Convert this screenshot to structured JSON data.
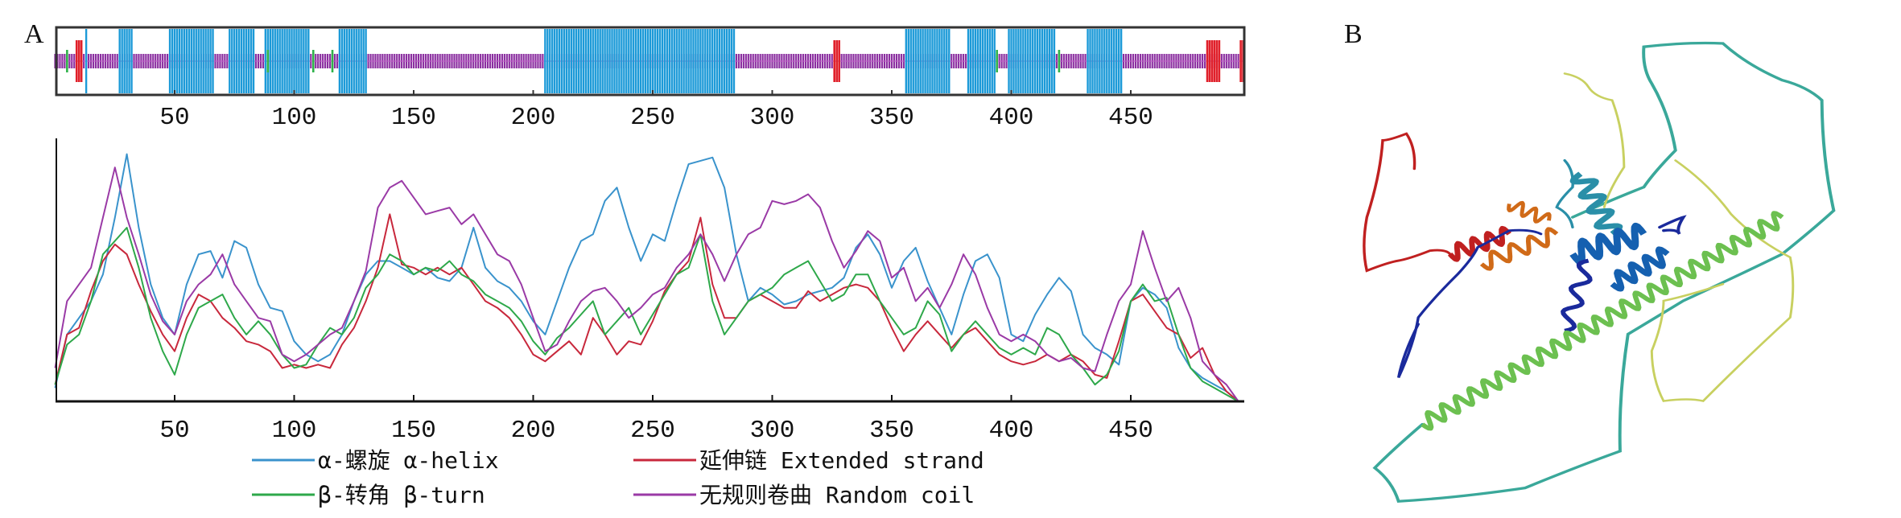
{
  "panel_a": {
    "label": "A",
    "track": {
      "length": 497,
      "helix_segments": [
        [
          13,
          13
        ],
        [
          27,
          32
        ],
        [
          48,
          66
        ],
        [
          73,
          83
        ],
        [
          88,
          106
        ],
        [
          119,
          130
        ],
        [
          205,
          284
        ],
        [
          356,
          374
        ],
        [
          382,
          393
        ],
        [
          399,
          418
        ],
        [
          432,
          446
        ]
      ],
      "extended_segments": [
        [
          9,
          11
        ],
        [
          326,
          328
        ],
        [
          482,
          487
        ],
        [
          496,
          497
        ]
      ],
      "turn_positions": [
        5,
        89,
        108,
        116,
        394,
        420
      ]
    },
    "colors": {
      "helix": "#1c9ad8",
      "extended": "#e0202a",
      "turn": "#2fb24a",
      "coil": "#8b2fa0",
      "frame": "#333333"
    }
  },
  "chart_data": {
    "type": "line",
    "title": "",
    "xlabel": "",
    "ylabel": "",
    "xlim": [
      0,
      497
    ],
    "ylim": [
      0,
      78
    ],
    "x_start": 0,
    "x_step": 5,
    "xticks": [
      "50",
      "100",
      "150",
      "200",
      "250",
      "300",
      "350",
      "400",
      "450"
    ],
    "xtick_values": [
      50,
      100,
      150,
      200,
      250,
      300,
      350,
      400,
      450
    ],
    "grid": false,
    "legend_position": "bottom",
    "series": [
      {
        "name": "α-螺旋 α-helix",
        "color": "#3a93cc",
        "values": [
          4,
          20,
          25,
          30,
          38,
          55,
          74,
          52,
          35,
          25,
          20,
          35,
          44,
          45,
          37,
          48,
          46,
          35,
          28,
          27,
          18,
          14,
          12,
          14,
          20,
          30,
          38,
          42,
          42,
          40,
          38,
          40,
          37,
          36,
          40,
          52,
          40,
          36,
          34,
          30,
          24,
          20,
          30,
          40,
          48,
          50,
          60,
          64,
          52,
          42,
          50,
          48,
          60,
          71,
          72,
          73,
          64,
          44,
          30,
          34,
          32,
          29,
          30,
          32,
          33,
          34,
          37,
          46,
          50,
          44,
          34,
          42,
          46,
          36,
          28,
          20,
          32,
          42,
          44,
          37,
          20,
          18,
          26,
          32,
          37,
          33,
          20,
          16,
          14,
          11,
          30,
          34,
          32,
          28,
          16,
          10,
          7,
          5,
          3,
          0
        ]
      },
      {
        "name": "延伸链 Extended strand",
        "color": "#c8283c",
        "values": [
          5,
          20,
          22,
          33,
          42,
          47,
          44,
          35,
          27,
          20,
          15,
          25,
          32,
          30,
          25,
          22,
          18,
          17,
          15,
          10,
          11,
          10,
          11,
          10,
          17,
          22,
          30,
          40,
          56,
          41,
          40,
          38,
          40,
          38,
          40,
          35,
          30,
          28,
          25,
          20,
          14,
          12,
          15,
          18,
          14,
          25,
          20,
          14,
          18,
          17,
          24,
          33,
          38,
          42,
          55,
          35,
          25,
          25,
          30,
          32,
          30,
          28,
          28,
          33,
          30,
          32,
          34,
          35,
          34,
          30,
          22,
          15,
          20,
          24,
          20,
          16,
          20,
          22,
          18,
          14,
          12,
          11,
          12,
          14,
          12,
          14,
          12,
          8,
          7,
          18,
          30,
          32,
          27,
          22,
          20,
          13,
          16,
          8,
          3,
          0
        ]
      },
      {
        "name": "β-转角 β-turn",
        "color": "#2ea84a",
        "values": [
          5,
          17,
          20,
          30,
          44,
          48,
          52,
          40,
          25,
          15,
          8,
          20,
          28,
          30,
          32,
          25,
          20,
          24,
          20,
          14,
          10,
          11,
          17,
          22,
          20,
          25,
          34,
          38,
          44,
          42,
          38,
          40,
          39,
          42,
          38,
          36,
          32,
          30,
          28,
          24,
          18,
          14,
          19,
          22,
          26,
          30,
          20,
          24,
          28,
          20,
          26,
          32,
          38,
          40,
          50,
          30,
          20,
          25,
          30,
          32,
          34,
          38,
          40,
          42,
          36,
          30,
          32,
          38,
          38,
          30,
          25,
          20,
          22,
          30,
          26,
          15,
          20,
          24,
          20,
          16,
          14,
          16,
          14,
          22,
          20,
          14,
          10,
          5,
          8,
          15,
          30,
          35,
          30,
          31,
          20,
          10,
          6,
          4,
          2,
          0
        ]
      },
      {
        "name": "无规则卷曲 Random coil",
        "color": "#9a3aa6",
        "values": [
          10,
          30,
          35,
          40,
          55,
          70,
          55,
          44,
          32,
          24,
          20,
          30,
          35,
          38,
          44,
          35,
          30,
          25,
          24,
          14,
          12,
          14,
          17,
          20,
          22,
          30,
          39,
          58,
          64,
          66,
          61,
          56,
          57,
          58,
          53,
          56,
          50,
          44,
          42,
          35,
          25,
          15,
          17,
          24,
          30,
          33,
          34,
          30,
          25,
          28,
          32,
          34,
          40,
          44,
          50,
          44,
          36,
          44,
          50,
          52,
          60,
          59,
          60,
          62,
          58,
          48,
          40,
          45,
          51,
          48,
          37,
          40,
          30,
          34,
          28,
          35,
          44,
          38,
          28,
          20,
          18,
          20,
          18,
          14,
          12,
          13,
          10,
          9,
          20,
          30,
          35,
          51,
          40,
          30,
          34,
          25,
          12,
          8,
          5,
          0
        ]
      }
    ]
  },
  "panel_b": {
    "label": "B",
    "colors": {
      "n_term": "#1a2a9c",
      "helix_blue": "#1560b0",
      "cyan": "#2a8fa8",
      "teal": "#3aa89a",
      "green": "#6cc050",
      "yellow": "#c8d060",
      "orange": "#d06a18",
      "red": "#c02020"
    }
  }
}
